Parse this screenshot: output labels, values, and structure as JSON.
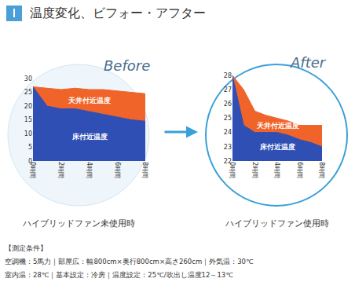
{
  "title": "温度変化、ビフォー・アフター",
  "chart_data": [
    {
      "type": "area",
      "title": "Before",
      "caption": "ハイブリッドファン未使用時",
      "x": [
        0,
        1,
        2,
        3,
        4,
        5,
        6,
        7,
        8
      ],
      "xlim": [
        0,
        8
      ],
      "xticks": [
        {
          "value": 0,
          "label": "0時間"
        },
        {
          "value": 2,
          "label": "2時間"
        },
        {
          "value": 4,
          "label": "4時間"
        },
        {
          "value": 6,
          "label": "6時間"
        },
        {
          "value": 8,
          "label": "8時間"
        }
      ],
      "ylim": [
        0,
        30
      ],
      "yticks": [
        0,
        5,
        10,
        15,
        20,
        25,
        30
      ],
      "grid": false,
      "series": [
        {
          "name": "天井付近温度",
          "color": "#f0642a",
          "values": [
            27,
            26.5,
            26,
            26.5,
            26,
            26,
            25.5,
            25,
            24.5
          ]
        },
        {
          "name": "床付近温度",
          "color": "#2f4fb5",
          "values": [
            27,
            20,
            19,
            19,
            18,
            17,
            16,
            15,
            14.5
          ]
        }
      ]
    },
    {
      "type": "area",
      "title": "After",
      "caption": "ハイブリッドファン使用時",
      "x": [
        0,
        1,
        2,
        3,
        4,
        5,
        6,
        7,
        8
      ],
      "xlim": [
        0,
        8
      ],
      "xticks": [
        {
          "value": 0,
          "label": "0時間"
        },
        {
          "value": 2,
          "label": "2時間"
        },
        {
          "value": 4,
          "label": "4時間"
        },
        {
          "value": 6,
          "label": "6時間"
        },
        {
          "value": 8,
          "label": "8時間"
        }
      ],
      "ylim": [
        22,
        28
      ],
      "yticks": [
        22,
        23,
        24,
        25,
        26,
        27,
        28
      ],
      "grid": false,
      "series": [
        {
          "name": "天井付近温度",
          "color": "#f0642a",
          "values": [
            28,
            27,
            25.5,
            25.2,
            25,
            24.8,
            24.5,
            24.5,
            24.5
          ]
        },
        {
          "name": "床付近温度",
          "color": "#2f4fb5",
          "values": [
            28,
            24.5,
            24,
            24,
            24,
            23.8,
            23.5,
            23.3,
            23
          ]
        }
      ]
    }
  ],
  "notes": [
    "【測定条件】",
    "空調機：5馬力｜部屋広：幅800cm×奥行800cm×高さ260cm｜外気温：30℃",
    "室内温：28℃｜基本設定：冷房｜温度設定：25℃/吹出し温度12～13℃"
  ]
}
